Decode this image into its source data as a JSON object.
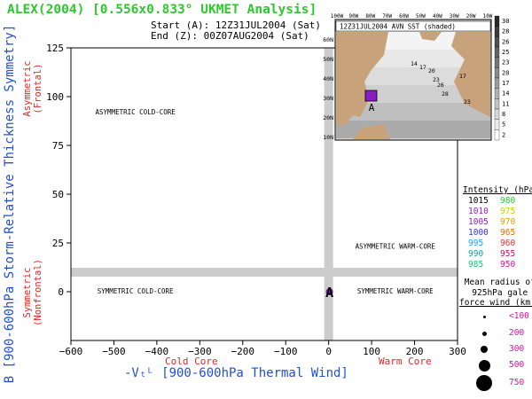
{
  "header": {
    "title": "ALEX(2004) [0.556x0.833° UKMET Analysis]",
    "start": "Start (A): 12Z31JUL2004 (Sat)",
    "end": "End (Z): 00Z07AUG2004 (Sat)"
  },
  "axes": {
    "ylabel": "B [900-600hPa Storm-Relative Thickness Symmetry]",
    "y_asym": [
      "Asymmetric",
      "(Frontal)"
    ],
    "y_sym": [
      "Symmetric",
      "(Nonfrontal)"
    ],
    "xlabel": "-Vₜᴸ [900-600hPa Thermal Wind]",
    "x_cold": "Cold Core",
    "x_warm": "Warm Core"
  },
  "colors": {
    "title": "#2ec82e",
    "axis_label": "#1f4fd6",
    "sub_label": "#e02828",
    "bands": "#cccccc",
    "marker": "#8a1cc4"
  },
  "chart_data": {
    "type": "scatter",
    "title": "",
    "xlim": [
      -600,
      300
    ],
    "ylim": [
      -25,
      125
    ],
    "xticks": [
      -600,
      -500,
      -400,
      -300,
      -200,
      -100,
      0,
      100,
      200,
      300
    ],
    "yticks": [
      125,
      100,
      75,
      50,
      25,
      0
    ],
    "xtick_labels": [
      "−600",
      "−500",
      "−400",
      "−300",
      "−200",
      "−100",
      "0",
      "100",
      "200",
      "300"
    ],
    "ytick_labels": [
      "125",
      "100",
      "75",
      "50",
      "25",
      "0"
    ],
    "reference_lines": {
      "x": 0,
      "y": 10
    },
    "quadrant_labels": [
      {
        "text": "ASYMMETRIC COLD-CORE",
        "x": -450,
        "y": 91
      },
      {
        "text": "ASYMMETRIC WARM-CORE",
        "x": 155,
        "y": 22
      },
      {
        "text": "SYMMETRIC COLD-CORE",
        "x": -450,
        "y": -1
      },
      {
        "text": "SYMMETRIC WARM-CORE",
        "x": 155,
        "y": -1
      }
    ],
    "series": [
      {
        "points": [
          {
            "x": 2,
            "y": 0,
            "label": "A"
          }
        ],
        "color": "#8a1cc4"
      }
    ],
    "legend": {
      "intensity_title": "Intensity (hPa):",
      "intensity": [
        {
          "a": "1015",
          "b": "980",
          "ca": "#000000",
          "cb": "#2ec82e"
        },
        {
          "a": "1010",
          "b": "975",
          "ca": "#8a1cc4",
          "cb": "#c8d000"
        },
        {
          "a": "1005",
          "b": "970",
          "ca": "#8a1cc4",
          "cb": "#e0a000"
        },
        {
          "a": "1000",
          "b": "965",
          "ca": "#3030e0",
          "cb": "#e07000"
        },
        {
          "a": "995",
          "b": "960",
          "ca": "#1aa0ff",
          "cb": "#e03030"
        },
        {
          "a": "990",
          "b": "955",
          "ca": "#1aa0a0",
          "cb": "#c01060"
        },
        {
          "a": "985",
          "b": "950",
          "ca": "#20c080",
          "cb": "#e010a0"
        }
      ],
      "radius_title": [
        "Mean radius of",
        "925hPa gale",
        "force wind (km):"
      ],
      "radius": [
        "<100",
        "200",
        "300",
        "500",
        "750"
      ]
    },
    "inset": {
      "title": "12Z31JUL2004 AVN SST (shaded)",
      "lon_labels": [
        "100W",
        "90W",
        "80W",
        "70W",
        "60W",
        "50W",
        "40W",
        "30W",
        "20W",
        "10W"
      ],
      "lat_labels": [
        "60N",
        "50N",
        "40N",
        "30N",
        "20N",
        "10N"
      ],
      "colorbar": [
        "30",
        "28",
        "26",
        "25",
        "23",
        "20",
        "17",
        "14",
        "11",
        "8",
        "5",
        "2"
      ],
      "contour_labels": [
        "14",
        "17",
        "20",
        "23",
        "26",
        "28",
        "17",
        "23"
      ]
    }
  }
}
